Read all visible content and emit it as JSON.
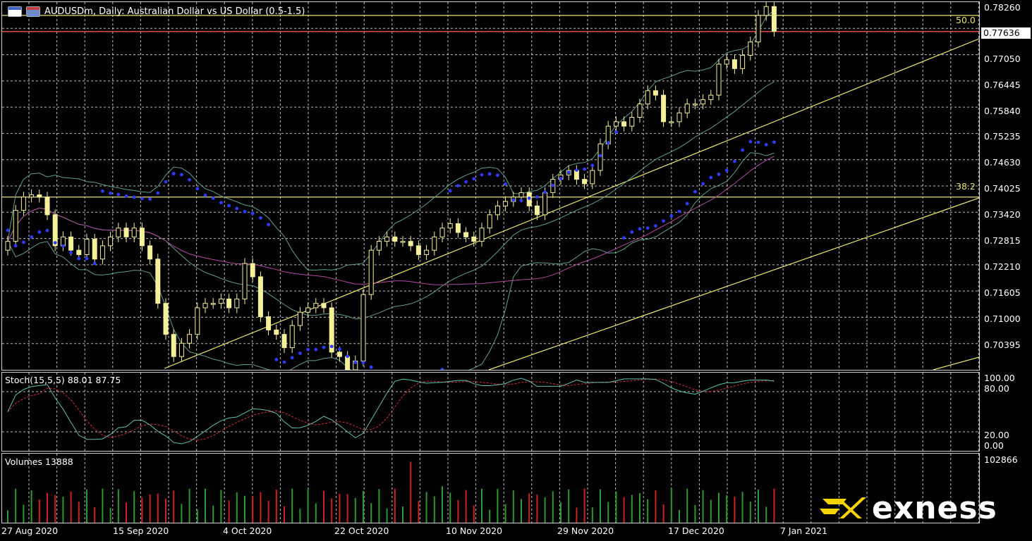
{
  "window": {
    "title": "AUDUSDm, Daily:  Australian Dollar vs US Dollar (0.5-1.5)",
    "symbol": "AUDUSDm",
    "timeframe": "Daily"
  },
  "price_axis": {
    "labels": [
      "0.78260",
      "0.77050",
      "0.76445",
      "0.75840",
      "0.75235",
      "0.74630",
      "0.74025",
      "0.73420",
      "0.72815",
      "0.72210",
      "0.71605",
      "0.71000",
      "0.70395"
    ],
    "current_price": "0.77636"
  },
  "fibonacci": {
    "levels": [
      {
        "label": "50.0",
        "price": 0.78
      },
      {
        "label": "38.2",
        "price": 0.739
      }
    ],
    "color": "#e8e070"
  },
  "stochastic": {
    "label": "Stoch(15,5,5) 88.01 87.75",
    "axis_labels": [
      "100.00",
      "80.00",
      "20.00",
      "0.00"
    ]
  },
  "volumes": {
    "label": "Volumes 13888",
    "axis_labels": [
      "102866"
    ]
  },
  "time_axis": {
    "labels": [
      "27 Aug 2020",
      "15 Sep 2020",
      "4 Oct 2020",
      "22 Oct 2020",
      "10 Nov 2020",
      "29 Nov 2020",
      "17 Dec 2020",
      "7 Jan 2021"
    ]
  },
  "brand": {
    "name": "exness",
    "accent": "#f5d400"
  },
  "colors": {
    "candle": "#f5f09a",
    "sar": "#2f3cff",
    "grid": "#ffffff",
    "band": "#5f9f8a",
    "ma": "#b04aa0",
    "stoch_main": "#5fc0b0",
    "stoch_signal": "#d03030",
    "vol_up": "#2a9a2a",
    "vol_down": "#d02020",
    "price_line": "#e04a4a"
  },
  "chart_data": {
    "type": "candlestick",
    "series": [
      {
        "name": "AUDUSDm",
        "values": [
          0.729,
          0.736,
          0.739,
          0.7395,
          0.739,
          0.735,
          0.728,
          0.73,
          0.727,
          0.726,
          0.7295,
          0.725,
          0.728,
          0.73,
          0.732,
          0.73,
          0.732,
          0.728,
          0.725,
          0.715,
          0.708,
          0.703,
          0.706,
          0.708,
          0.714,
          0.715,
          0.715,
          0.716,
          0.714,
          0.716,
          0.724,
          0.721,
          0.712,
          0.709,
          0.708,
          0.705,
          0.71,
          0.713,
          0.714,
          0.715,
          0.714,
          0.704,
          0.703,
          0.7,
          0.702,
          0.717,
          0.727,
          0.729,
          0.73,
          0.729,
          0.729,
          0.728,
          0.726,
          0.727,
          0.73,
          0.732,
          0.733,
          0.731,
          0.73,
          0.729,
          0.732,
          0.735,
          0.737,
          0.738,
          0.739,
          0.74,
          0.737,
          0.735,
          0.74,
          0.743,
          0.744,
          0.745,
          0.743,
          0.742,
          0.745,
          0.751,
          0.755,
          0.756,
          0.755,
          0.757,
          0.76,
          0.763,
          0.762,
          0.756,
          0.756,
          0.758,
          0.76,
          0.76,
          0.761,
          0.762,
          0.769,
          0.77,
          0.768,
          0.771,
          0.774,
          0.78,
          0.782,
          0.7764
        ]
      }
    ],
    "ylim": [
      0.7,
      0.783
    ],
    "stochastic": {
      "main": 88.01,
      "signal": 87.75,
      "ylim": [
        0,
        100
      ]
    },
    "volume": {
      "last": 13888,
      "max": 102866
    }
  }
}
